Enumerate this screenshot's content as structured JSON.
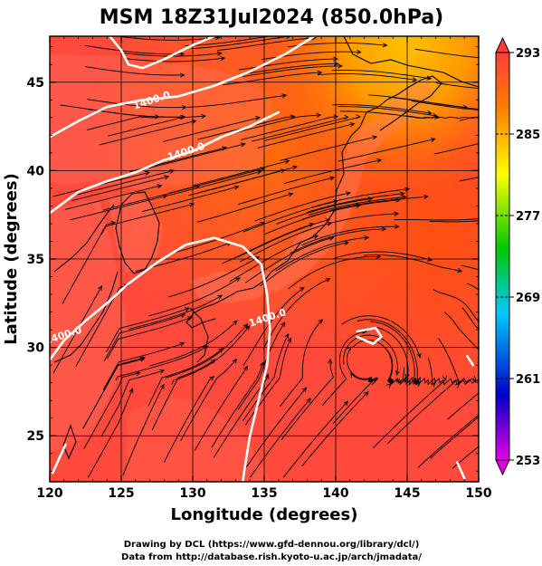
{
  "figure": {
    "title": "MSM 18Z31Jul2024 (850.0hPa)",
    "xlabel": "Longitude (degrees)",
    "ylabel": "Latitude  (degrees)",
    "credit_line1": "Drawing by DCL (https://www.gfd-dennou.org/library/dcl/)",
    "credit_line2": "Data from http://database.rish.kyoto-u.ac.jp/arch/jmadata/"
  },
  "chart_data": {
    "type": "heatmap",
    "title": "MSM 18Z31Jul2024 (850.0hPa)",
    "xlabel": "Longitude (degrees)",
    "ylabel": "Latitude  (degrees)",
    "xlim": [
      120,
      150
    ],
    "ylim": [
      22.4,
      47.6
    ],
    "xticks": [
      120,
      125,
      130,
      135,
      140,
      145,
      150
    ],
    "yticks": [
      25,
      30,
      35,
      40,
      45
    ],
    "xtick_labels": [
      "120",
      "125",
      "130",
      "135",
      "140",
      "145",
      "150"
    ],
    "ytick_labels": [
      "25",
      "30",
      "35",
      "40",
      "45"
    ],
    "grid": true,
    "colorbar": {
      "min": 253,
      "max": 293,
      "ticks": [
        253,
        261,
        269,
        277,
        285,
        293
      ],
      "tick_labels": [
        "253",
        "261",
        "269",
        "277",
        "285",
        "293"
      ],
      "colors": [
        "#e600e6",
        "#0000c8",
        "#00c8ff",
        "#00c800",
        "#ffff00",
        "#ff8000",
        "#ff3c3c"
      ]
    },
    "contour_labels": [
      {
        "text": "1400.0",
        "lon": 127.2,
        "lat": 43.8
      },
      {
        "text": "1400.0",
        "lon": 129.6,
        "lat": 40.9
      },
      {
        "text": "1400.0",
        "lon": 121.0,
        "lat": 30.5
      },
      {
        "text": "1400.0",
        "lon": 135.3,
        "lat": 31.5
      }
    ],
    "contours_1400m": [
      [
        [
          124.2,
          47.6
        ],
        [
          125.0,
          46.8
        ],
        [
          125.5,
          46.0
        ],
        [
          126.5,
          45.8
        ],
        [
          128.0,
          46.3
        ],
        [
          130.0,
          47.1
        ],
        [
          131.5,
          47.6
        ]
      ],
      [
        [
          120,
          41.9
        ],
        [
          122,
          42.8
        ],
        [
          124,
          43.6
        ],
        [
          126.5,
          44.0
        ],
        [
          129,
          44.2
        ],
        [
          131.5,
          44.8
        ],
        [
          134,
          45.6
        ],
        [
          136.5,
          46.6
        ],
        [
          138.5,
          47.6
        ]
      ],
      [
        [
          120,
          37.6
        ],
        [
          122,
          38.8
        ],
        [
          124,
          39.4
        ],
        [
          126,
          39.9
        ],
        [
          128,
          40.6
        ],
        [
          130,
          41.1
        ],
        [
          132,
          41.9
        ],
        [
          134,
          42.5
        ],
        [
          136,
          43.3
        ]
      ],
      [
        [
          120,
          29.3
        ],
        [
          121,
          30.4
        ],
        [
          122.5,
          31.5
        ],
        [
          124,
          32.5
        ],
        [
          125.5,
          33.6
        ],
        [
          127.5,
          34.8
        ],
        [
          129.5,
          35.8
        ],
        [
          131.5,
          36.2
        ],
        [
          133.5,
          35.7
        ],
        [
          134.8,
          34.7
        ],
        [
          135.2,
          33.0
        ],
        [
          135.4,
          31.0
        ],
        [
          135.2,
          29.0
        ],
        [
          134.6,
          27.0
        ],
        [
          134.0,
          25.0
        ],
        [
          133.6,
          23.0
        ],
        [
          133.5,
          22.4
        ]
      ],
      [
        [
          141.5,
          30.9
        ],
        [
          142.8,
          31.1
        ],
        [
          143.2,
          30.6
        ],
        [
          142.6,
          30.2
        ],
        [
          141.5,
          30.6
        ]
      ],
      [
        [
          120.2,
          22.9
        ],
        [
          120.7,
          23.8
        ],
        [
          121.1,
          24.5
        ]
      ],
      [
        [
          149.2,
          29.5
        ],
        [
          149.6,
          29.0
        ]
      ],
      [
        [
          148.5,
          23.5
        ],
        [
          149.0,
          22.6
        ]
      ]
    ],
    "low_centers": [
      {
        "lon": 142.3,
        "lat": 30.7
      },
      {
        "lon": 148.8,
        "lat": 32.3
      }
    ]
  }
}
